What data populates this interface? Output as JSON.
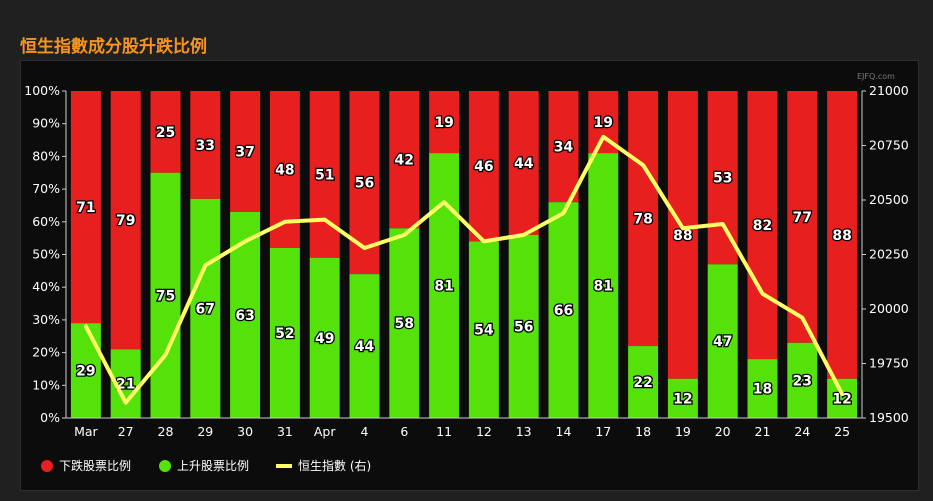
{
  "title": "恒生指數成分股升跌比例",
  "credit": "EJFQ.com",
  "colors": {
    "down": "#e81f1f",
    "up": "#55e20a",
    "index_line": "#ffff66",
    "title": "#f7941d",
    "background": "#0c0c0c"
  },
  "chart_data": {
    "type": "bar",
    "stacked": true,
    "categories": [
      "Mar",
      "27",
      "28",
      "29",
      "30",
      "31",
      "Apr",
      "4",
      "6",
      "11",
      "12",
      "13",
      "14",
      "17",
      "18",
      "19",
      "20",
      "21",
      "24",
      "25"
    ],
    "series": [
      {
        "name": "上升股票比例",
        "type": "bar",
        "color": "#55e20a",
        "values": [
          29,
          21,
          75,
          67,
          63,
          52,
          49,
          44,
          58,
          81,
          54,
          56,
          66,
          81,
          22,
          12,
          47,
          18,
          23,
          12
        ]
      },
      {
        "name": "下跌股票比例",
        "type": "bar",
        "color": "#e81f1f",
        "values": [
          71,
          79,
          25,
          33,
          37,
          48,
          51,
          56,
          42,
          19,
          46,
          44,
          34,
          19,
          78,
          88,
          53,
          82,
          77,
          88
        ]
      },
      {
        "name": "恒生指數 (右)",
        "type": "line",
        "color": "#ffff66",
        "axis": "right",
        "values": [
          19920,
          19570,
          19790,
          20200,
          20310,
          20400,
          20410,
          20280,
          20340,
          20490,
          20310,
          20340,
          20440,
          20790,
          20660,
          20370,
          20390,
          20070,
          19960,
          19610
        ]
      }
    ],
    "y_left": {
      "min": 0,
      "max": 100,
      "ticks": [
        "0%",
        "10%",
        "20%",
        "30%",
        "40%",
        "50%",
        "60%",
        "70%",
        "80%",
        "90%",
        "100%"
      ]
    },
    "y_right": {
      "min": 19500,
      "max": 21000,
      "ticks": [
        "19500",
        "19750",
        "20000",
        "20250",
        "20500",
        "20750",
        "21000"
      ]
    },
    "legend": {
      "position": "bottom-left",
      "items": [
        "下跌股票比例",
        "上升股票比例",
        "恒生指數 (右)"
      ]
    }
  }
}
